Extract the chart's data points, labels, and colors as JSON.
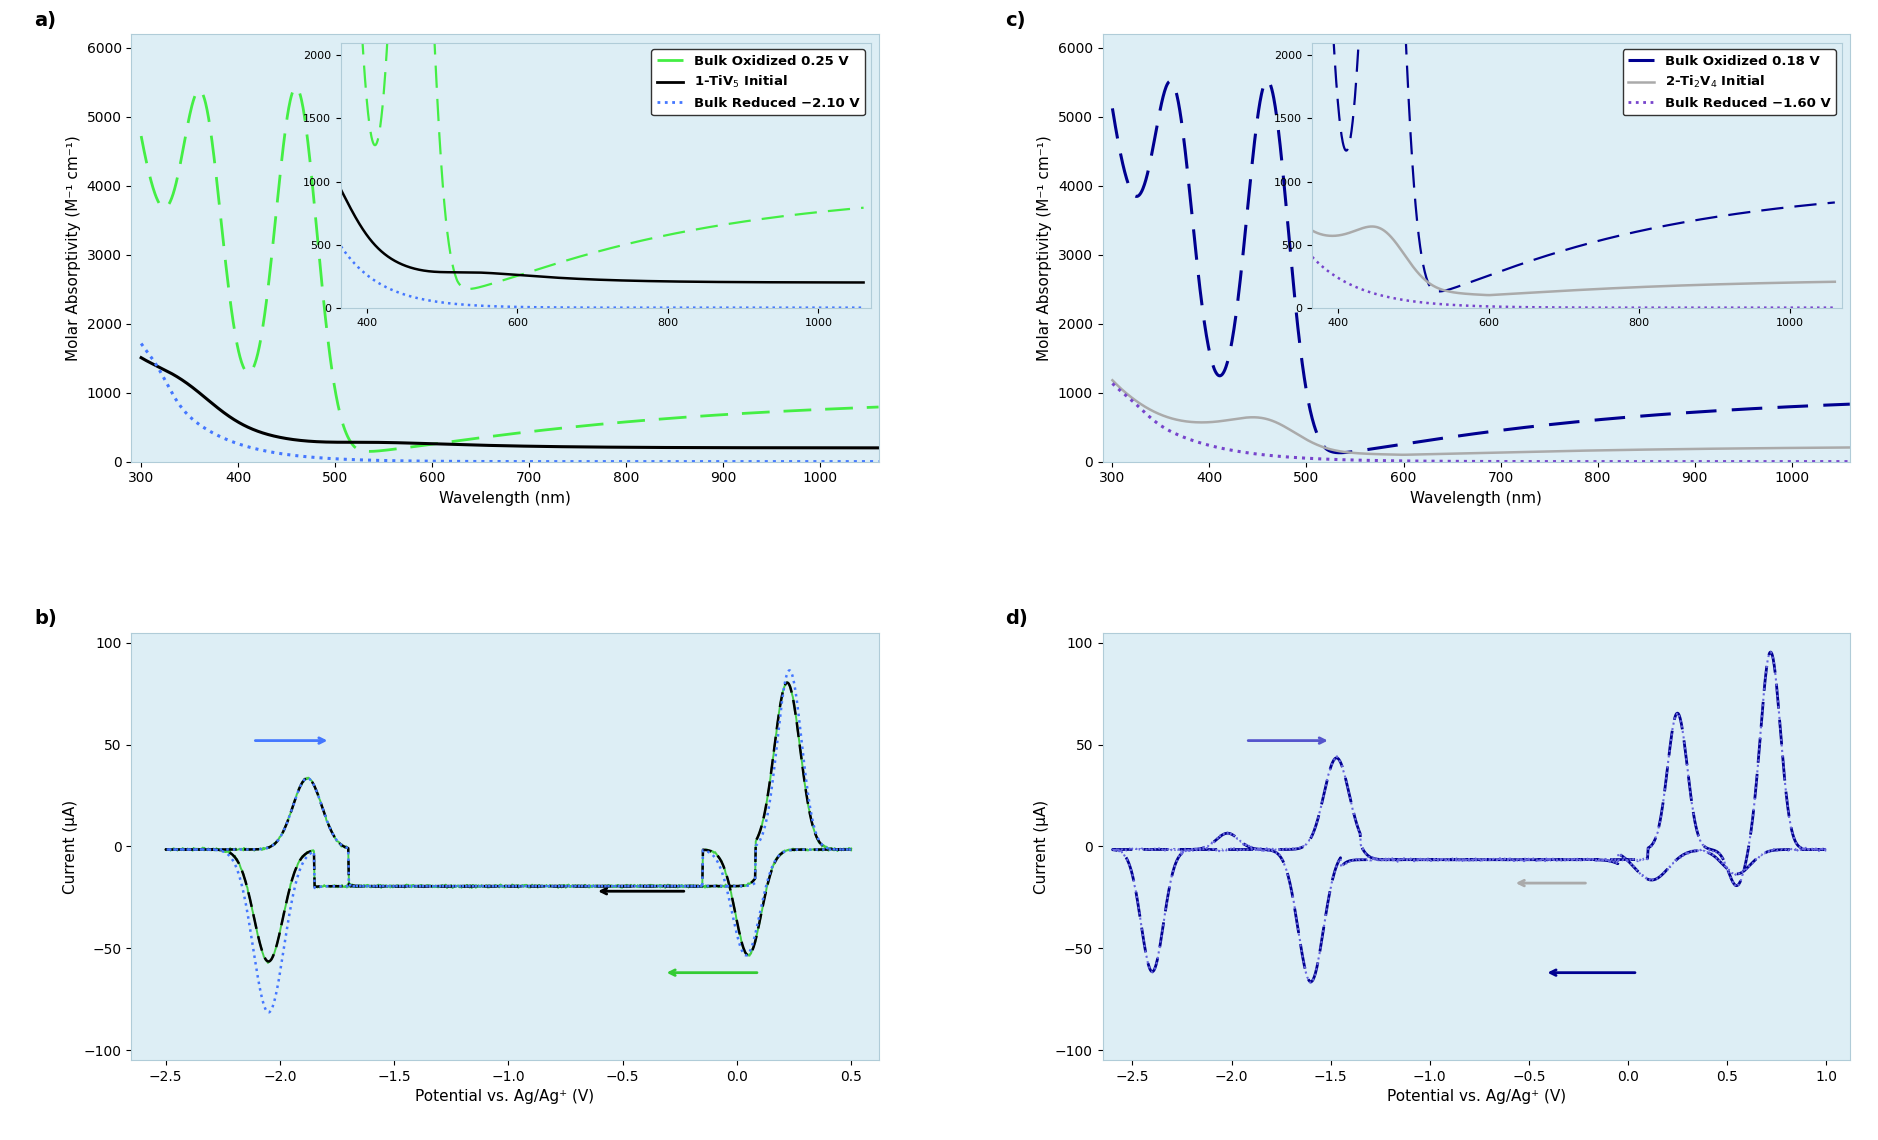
{
  "fig_width": 18.78,
  "fig_height": 11.4,
  "panel_bg": "#ddeef5",
  "white_bg": "#ffffff",
  "green_color": "#44ee44",
  "black_color": "#000000",
  "blue_color": "#4477ff",
  "darkblue_color": "#000090",
  "gray_color": "#aaaaaa",
  "purple_color": "#7744cc",
  "panel_a_label": "a)",
  "panel_b_label": "b)",
  "panel_c_label": "c)",
  "panel_d_label": "d)",
  "xlabel_uv": "Wavelength (nm)",
  "ylabel_uv": "Molar Absorptivity (M⁻¹ cm⁻¹)",
  "xlabel_cv": "Potential vs. Ag/Ag⁺ (V)",
  "ylabel_cv": "Current (μA)"
}
